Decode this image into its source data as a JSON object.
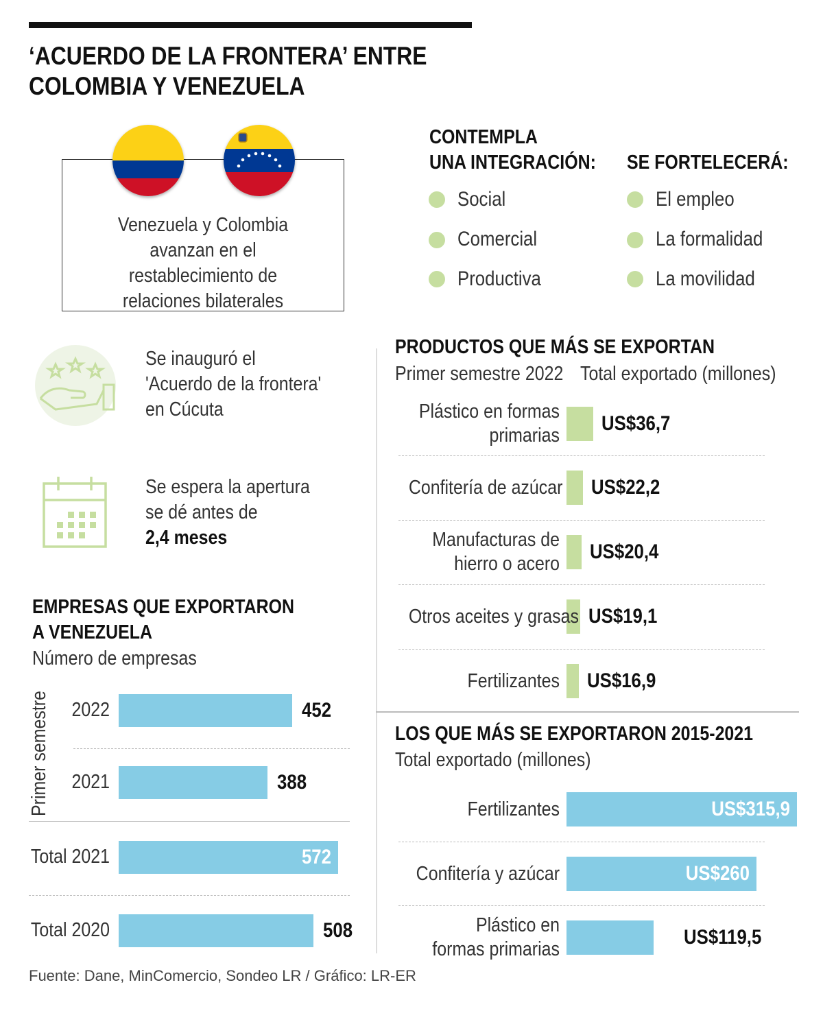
{
  "title": "‘ACUERDO DE LA FRONTERA’ ENTRE COLOMBIA Y VENEZUELA",
  "intro": "Venezuela y Colombia avanzan en el restablecimiento de relaciones bilaterales",
  "colors": {
    "green": "#c6dea0",
    "blue": "#86cce5",
    "col_yellow": "#fcd116",
    "col_blue": "#003893",
    "col_red": "#ce1126"
  },
  "integration": {
    "heading_line1": "CONTEMPLA",
    "heading_line2": "UNA INTEGRACIÓN:",
    "items": [
      "Social",
      "Comercial",
      "Productiva"
    ]
  },
  "strengthen": {
    "heading": "SE FORTELECERÁ:",
    "items": [
      "El empleo",
      "La formalidad",
      "La movilidad"
    ]
  },
  "info1": {
    "icon": "hand-stars-icon",
    "line1": "Se inauguró el",
    "line2": "'Acuerdo de la frontera'",
    "line3": "en Cúcuta"
  },
  "info2": {
    "icon": "calendar-icon",
    "line1": "Se espera la apertura",
    "line2": "se dé antes de",
    "line3": "2,4 meses"
  },
  "chart_data": [
    {
      "type": "bar",
      "title": "EMPRESAS QUE EXPORTARON A VENEZUELA",
      "title_line1": "EMPRESAS QUE EXPORTARON",
      "title_line2": "A VENEZUELA",
      "subtitle": "Número de empresas",
      "group_label": "Primer semestre",
      "categories": [
        "2022",
        "2021",
        "Total 2021",
        "Total 2020"
      ],
      "values": [
        452,
        388,
        572,
        508
      ],
      "value_labels": [
        "452",
        "388",
        "572",
        "508"
      ]
    },
    {
      "type": "bar",
      "title": "PRODUCTOS QUE MÁS SE EXPORTAN",
      "subtitle": "Primer semestre 2022",
      "unit_label": "Total exportado (millones)",
      "categories": [
        "Plástico en formas primarias",
        "Confitería de azúcar",
        "Manufacturas de hierro o acero",
        "Otros aceites y grasas",
        "Fertilizantes"
      ],
      "category_lines": [
        [
          "Plástico en formas",
          "primarias"
        ],
        [
          "Confitería de azúcar"
        ],
        [
          "Manufacturas de",
          "hierro o acero"
        ],
        [
          "Otros aceites y grasas"
        ],
        [
          "Fertilizantes"
        ]
      ],
      "values": [
        36.7,
        22.2,
        20.4,
        19.1,
        16.9
      ],
      "value_labels": [
        "US$36,7",
        "US$22,2",
        "US$20,4",
        "US$19,1",
        "US$16,9"
      ]
    },
    {
      "type": "bar",
      "title": "LOS QUE MÁS SE EXPORTARON 2015-2021",
      "subtitle": "Total exportado (millones)",
      "categories": [
        "Fertilizantes",
        "Confitería y azúcar",
        "Plástico en formas primarias"
      ],
      "category_lines": [
        [
          "Fertilizantes"
        ],
        [
          "Confitería y azúcar"
        ],
        [
          "Plástico en",
          "formas primarias"
        ]
      ],
      "values": [
        315.9,
        260,
        119.5
      ],
      "value_labels": [
        "US$315,9",
        "US$260",
        "US$119,5"
      ]
    }
  ],
  "source": "Fuente: Dane, MinComercio, Sondeo LR / Gráfico: LR-ER"
}
